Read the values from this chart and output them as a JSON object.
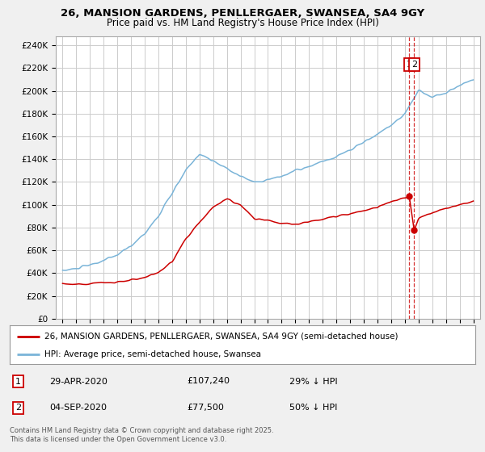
{
  "title_line1": "26, MANSION GARDENS, PENLLERGAER, SWANSEA, SA4 9GY",
  "title_line2": "Price paid vs. HM Land Registry's House Price Index (HPI)",
  "ylabel_ticks": [
    "£0",
    "£20K",
    "£40K",
    "£60K",
    "£80K",
    "£100K",
    "£120K",
    "£140K",
    "£160K",
    "£180K",
    "£200K",
    "£220K",
    "£240K"
  ],
  "ytick_values": [
    0,
    20000,
    40000,
    60000,
    80000,
    100000,
    120000,
    140000,
    160000,
    180000,
    200000,
    220000,
    240000
  ],
  "ylim": [
    0,
    248000
  ],
  "xlim_start": 1994.5,
  "xlim_end": 2025.5,
  "hpi_color": "#7ab4d8",
  "price_color": "#cc0000",
  "dashed_color": "#cc0000",
  "grid_color": "#cccccc",
  "bg_color": "#f0f0f0",
  "plot_bg_color": "#ffffff",
  "legend_text1": "26, MANSION GARDENS, PENLLERGAER, SWANSEA, SA4 9GY (semi-detached house)",
  "legend_text2": "HPI: Average price, semi-detached house, Swansea",
  "footnote": "Contains HM Land Registry data © Crown copyright and database right 2025.\nThis data is licensed under the Open Government Licence v3.0.",
  "annotation1_date": "29-APR-2020",
  "annotation1_price": "£107,240",
  "annotation1_hpi": "29% ↓ HPI",
  "annotation2_date": "04-SEP-2020",
  "annotation2_price": "£77,500",
  "annotation2_hpi": "50% ↓ HPI",
  "sale1_x": 2020.32,
  "sale1_y": 107240,
  "sale2_x": 2020.68,
  "sale2_y": 77500,
  "hpi_knots_x": [
    1995,
    1996,
    1997,
    1998,
    1999,
    2000,
    2001,
    2002,
    2003,
    2004,
    2005,
    2006,
    2007,
    2008,
    2009,
    2010,
    2011,
    2012,
    2013,
    2014,
    2015,
    2016,
    2017,
    2018,
    2019,
    2020,
    2021,
    2022,
    2023,
    2024,
    2025
  ],
  "hpi_knots_y": [
    42000,
    44000,
    47000,
    51000,
    56000,
    64000,
    75000,
    90000,
    110000,
    130000,
    145000,
    138000,
    132000,
    125000,
    120000,
    122000,
    125000,
    130000,
    133000,
    138000,
    142000,
    148000,
    155000,
    162000,
    170000,
    180000,
    200000,
    195000,
    198000,
    205000,
    210000
  ],
  "price_knots_x": [
    1995,
    1996,
    1997,
    1998,
    1999,
    2000,
    2001,
    2002,
    2003,
    2004,
    2005,
    2006,
    2007,
    2008,
    2009,
    2010,
    2011,
    2012,
    2013,
    2014,
    2015,
    2016,
    2017,
    2018,
    2019,
    2020.3,
    2020.32,
    2020.68,
    2020.7,
    2021,
    2022,
    2023,
    2024,
    2025
  ],
  "price_knots_y": [
    30000,
    30500,
    31000,
    31500,
    32000,
    34000,
    36000,
    40000,
    50000,
    70000,
    85000,
    98000,
    105000,
    100000,
    88000,
    86000,
    84000,
    83000,
    85000,
    88000,
    90000,
    92000,
    95000,
    98000,
    103000,
    107000,
    107240,
    77500,
    78000,
    88000,
    93000,
    97000,
    100000,
    103000
  ]
}
